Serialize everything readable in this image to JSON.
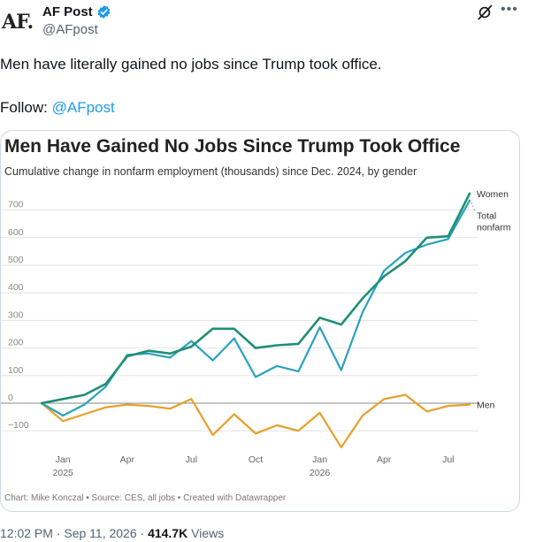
{
  "author": {
    "logo_text": "AF.",
    "name": "AF Post",
    "handle": "@AFpost"
  },
  "icons": {
    "verified": "verified-badge-icon",
    "grok": "grok-icon",
    "more": "more-icon"
  },
  "tweet": {
    "text": "Men have literally gained no jobs since Trump took office.",
    "follow_prefix": "Follow:",
    "follow_handle": "@AFpost"
  },
  "meta": {
    "timestamp": "12:02 PM · Sep 11, 2026 · ",
    "views_count": "414.7K",
    "views_label": " Views"
  },
  "colors": {
    "women": "#1f8f73",
    "total": "#2aa1c0",
    "men": "#e89f2a",
    "link": "#1d9bf0"
  },
  "chart_data": {
    "type": "line",
    "title": "Men Have Gained No Jobs Since Trump Took Office",
    "subtitle": "Cumulative change in nonfarm employment (thousands) since Dec. 2024, by gender",
    "footer": "Chart: Mike Konczal • Source: CES, all jobs • Created with Datawrapper",
    "x": [
      "Dec 2024",
      "Jan 2025",
      "Feb 2025",
      "Mar 2025",
      "Apr 2025",
      "May 2025",
      "Jun 2025",
      "Jul 2025",
      "Aug 2025",
      "Sep 2025",
      "Oct 2025",
      "Nov 2025",
      "Dec 2025",
      "Jan 2026",
      "Feb 2026",
      "Mar 2026",
      "Apr 2026",
      "May 2026",
      "Jun 2026",
      "Jul 2026",
      "Aug 2026"
    ],
    "x_tick_labels": [
      {
        "month": "Jan",
        "year": "2025",
        "index": 1
      },
      {
        "month": "Apr",
        "year": "",
        "index": 4
      },
      {
        "month": "Jul",
        "year": "",
        "index": 7
      },
      {
        "month": "Oct",
        "year": "",
        "index": 10
      },
      {
        "month": "Jan",
        "year": "2026",
        "index": 13
      },
      {
        "month": "Apr",
        "year": "",
        "index": 16
      },
      {
        "month": "Jul",
        "year": "",
        "index": 19
      }
    ],
    "y_ticks": [
      700,
      600,
      500,
      400,
      300,
      200,
      100,
      0,
      -100
    ],
    "ylim": [
      -150,
      750
    ],
    "grid": true,
    "series": [
      {
        "name": "Women",
        "color": "#1f8f73",
        "values": [
          0,
          15,
          30,
          70,
          170,
          190,
          180,
          205,
          270,
          270,
          200,
          210,
          215,
          310,
          285,
          380,
          460,
          515,
          600,
          605,
          760
        ]
      },
      {
        "name": "Total nonfarm",
        "color": "#2aa1c0",
        "values": [
          0,
          -45,
          -5,
          60,
          175,
          180,
          165,
          225,
          155,
          235,
          95,
          135,
          115,
          275,
          120,
          330,
          480,
          545,
          575,
          595,
          735
        ]
      },
      {
        "name": "Men",
        "color": "#e89f2a",
        "values": [
          0,
          -65,
          -40,
          -15,
          -5,
          -10,
          -20,
          15,
          -115,
          -40,
          -110,
          -80,
          -100,
          -35,
          -160,
          -45,
          15,
          30,
          -30,
          -10,
          -5
        ]
      }
    ]
  }
}
